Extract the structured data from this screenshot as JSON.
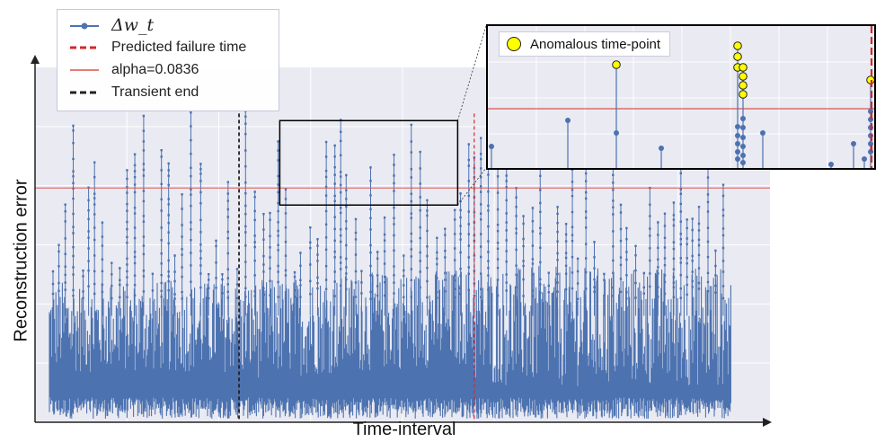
{
  "chart_data": {
    "type": "line",
    "title": "",
    "xlabel": "Time-interval",
    "ylabel": "Reconstruction error",
    "grid": true,
    "legend_position": "top-left",
    "legend": {
      "series": "Δw_t",
      "predicted_failure": "Predicted failure time",
      "alpha": "alpha=0.0836",
      "transient_end": "Transient end"
    },
    "alpha_threshold": 0.0836,
    "transient_end_fraction": 0.28,
    "predicted_failure_fraction": 0.6,
    "series_end_fraction": 0.99,
    "inset": {
      "legend_label": "Anomalous time-point",
      "description": "zoomed view around predicted failure time"
    },
    "colors": {
      "series": "#4c72b0",
      "failure_line": "#d62728",
      "threshold_line": "#d9534f",
      "transient_line": "#222222",
      "anomaly": "#ffff00",
      "background": "#eaeaf2"
    }
  }
}
